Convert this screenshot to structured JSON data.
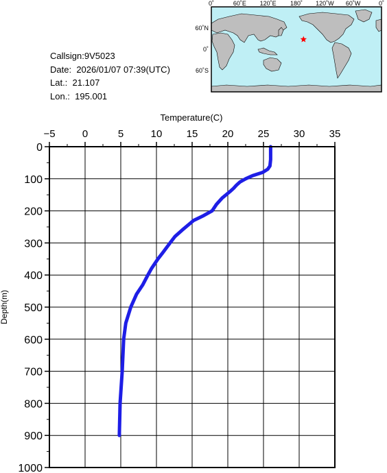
{
  "station": {
    "callsign_label": "Callsign:",
    "callsign": "9V5023",
    "date_label": "Date:",
    "date": "2026/01/07 07:39(UTC)",
    "lat_label": "Lat.:",
    "lat": "21.107",
    "lon_label": "Lon.:",
    "lon": "195.001"
  },
  "map": {
    "lon_ticks": [
      "0˚",
      "60˚E",
      "120˚E",
      "180˚",
      "120˚W",
      "60˚W",
      "0˚"
    ],
    "lat_ticks": [
      "60˚N",
      "0˚",
      "60˚S"
    ],
    "marker": {
      "lon": 195.001,
      "lat": 21.107,
      "color": "#ff0000"
    },
    "land_color": "#bebebe",
    "ocean_color": "#bfeff5"
  },
  "chart_data": {
    "type": "line",
    "xlabel": "Temperature(C)",
    "ylabel": "Depth(m)",
    "xlim": [
      -5,
      35
    ],
    "ylim": [
      1000,
      0
    ],
    "x_ticks": [
      "−5",
      "0",
      "5",
      "10",
      "15",
      "20",
      "25",
      "30",
      "35"
    ],
    "y_ticks": [
      "0",
      "100",
      "200",
      "300",
      "400",
      "500",
      "600",
      "700",
      "800",
      "900",
      "1000"
    ],
    "grid": true,
    "line_color": "#1e1ee6",
    "series": [
      {
        "depth": [
          0,
          20,
          40,
          60,
          70,
          80,
          90,
          100,
          110,
          120,
          130,
          140,
          160,
          180,
          200,
          215,
          230,
          260,
          280,
          300,
          330,
          350,
          380,
          400,
          430,
          460,
          500,
          550,
          600,
          700,
          800,
          900
        ],
        "temperature": [
          26.0,
          26.0,
          26.0,
          25.9,
          25.6,
          24.9,
          23.5,
          22.5,
          21.7,
          21.2,
          20.8,
          20.3,
          19.2,
          18.4,
          17.8,
          16.6,
          15.2,
          13.6,
          12.6,
          11.9,
          10.9,
          10.2,
          9.3,
          8.8,
          8.1,
          7.2,
          6.4,
          5.7,
          5.4,
          5.2,
          4.9,
          4.8
        ]
      }
    ]
  }
}
